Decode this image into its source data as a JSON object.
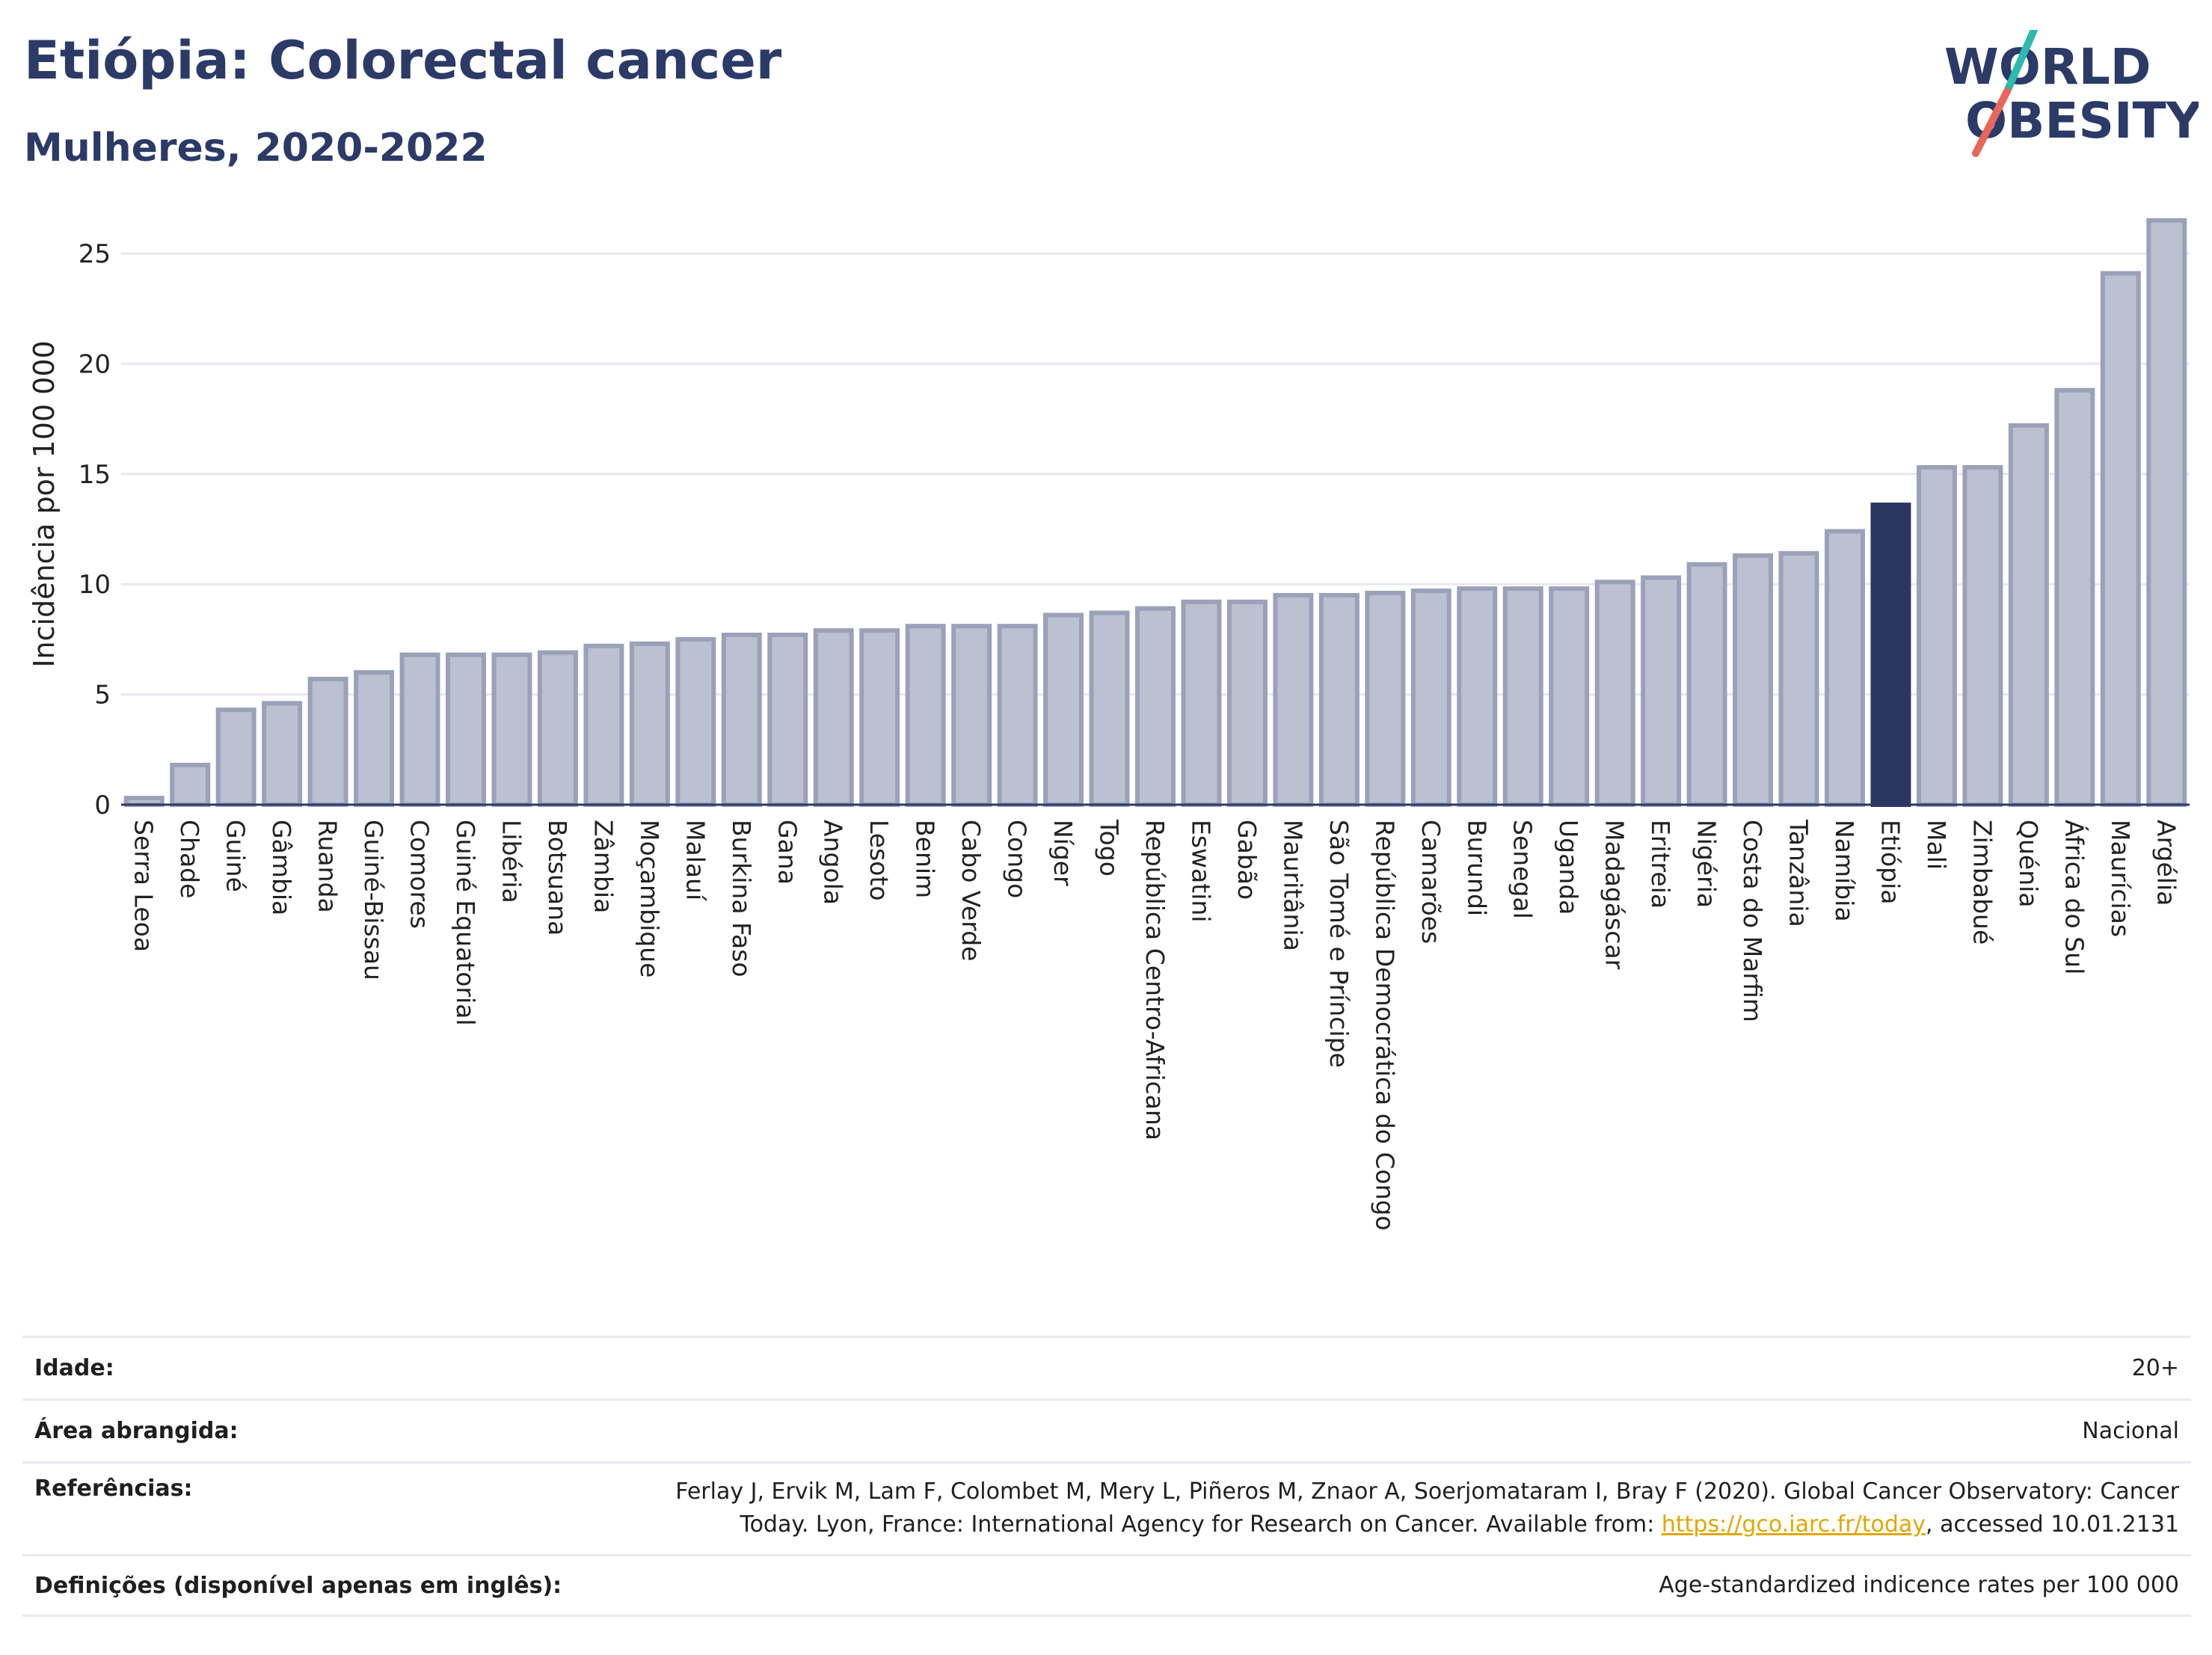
{
  "header": {
    "title": "Etiópia: Colorectal cancer",
    "subtitle": "Mulheres, 2020-2022"
  },
  "logo": {
    "line1": "WORLD",
    "line2": "OBESITY"
  },
  "colors": {
    "highlight": "#2b3760",
    "bar_fill": "#bcc1d1",
    "bar_stroke": "#9aa1b8",
    "grid": "#e6e8ef",
    "logo_text": "#2b3a67",
    "logo_slash_top": "#2bbbad",
    "logo_slash_bottom": "#e8665a"
  },
  "chart_data": {
    "type": "bar",
    "ylabel": "Incidência por 100 000",
    "ylim": [
      0,
      27
    ],
    "yticks": [
      0,
      5,
      10,
      15,
      20,
      25
    ],
    "grid": true,
    "highlight": "Etiópia",
    "categories": [
      "Serra Leoa",
      "Chade",
      "Guiné",
      "Gâmbia",
      "Ruanda",
      "Guiné-Bissau",
      "Comores",
      "Guiné Equatorial",
      "Libéria",
      "Botsuana",
      "Zâmbia",
      "Moçambique",
      "Malauí",
      "Burkina Faso",
      "Gana",
      "Angola",
      "Lesoto",
      "Benim",
      "Cabo Verde",
      "Congo",
      "Níger",
      "Togo",
      "República Centro-Africana",
      "Eswatini",
      "Gabão",
      "Mauritânia",
      "São Tomé e Príncipe",
      "República Democrática do Congo",
      "Camarões",
      "Burundi",
      "Senegal",
      "Uganda",
      "Madagáscar",
      "Eritreia",
      "Nigéria",
      "Costa do Marfim",
      "Tanzânia",
      "Namíbia",
      "Etiópia",
      "Mali",
      "Zimbabué",
      "Quénia",
      "África do Sul",
      "Maurícias",
      "Argélia"
    ],
    "values": [
      0.3,
      1.8,
      4.3,
      4.6,
      5.7,
      6.0,
      6.8,
      6.8,
      6.8,
      6.9,
      7.2,
      7.3,
      7.5,
      7.7,
      7.7,
      7.9,
      7.9,
      8.1,
      8.1,
      8.1,
      8.6,
      8.7,
      8.9,
      9.2,
      9.2,
      9.5,
      9.5,
      9.6,
      9.7,
      9.8,
      9.8,
      9.8,
      10.1,
      10.3,
      10.9,
      11.3,
      11.4,
      12.4,
      13.6,
      15.3,
      15.3,
      17.2,
      18.8,
      24.1,
      26.5
    ]
  },
  "meta": {
    "age_label": "Idade:",
    "age_value": "20+",
    "area_label": "Área abrangida:",
    "area_value": "Nacional",
    "ref_label": "Referências:",
    "ref_line1": "Ferlay J, Ervik M, Lam F, Colombet M, Mery L, Piñeros M, Znaor A, Soerjomataram I, Bray F (2020). Global Cancer Observatory: Cancer",
    "ref_line2_pre": "Today. Lyon, France: International Agency for Research on Cancer. Available from: ",
    "ref_link": "https://gco.iarc.fr/today",
    "ref_line2_post": ", accessed 10.01.2131",
    "def_label": "Definições (disponível apenas em inglês):",
    "def_value": "Age-standardized indicence rates per 100 000"
  }
}
